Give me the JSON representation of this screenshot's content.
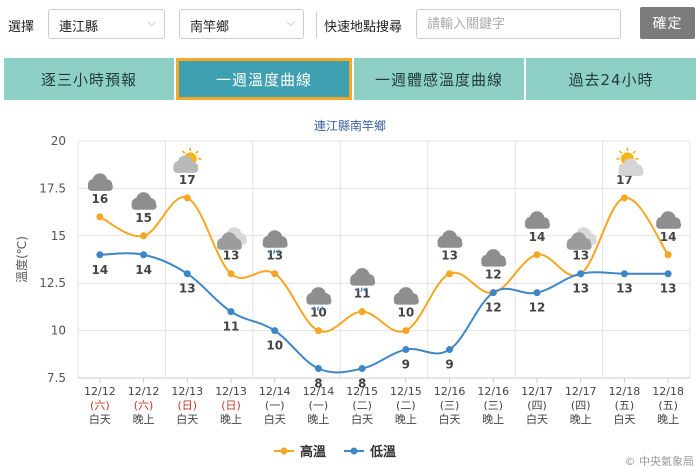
{
  "search": {
    "select_label": "選擇",
    "county": "連江縣",
    "town": "南竿鄉",
    "quick_label": "快速地點搜尋",
    "placeholder": "請輸入關鍵字",
    "confirm_label": "確定"
  },
  "tabs": [
    {
      "label": "逐三小時預報",
      "active": false
    },
    {
      "label": "一週溫度曲線",
      "active": true
    },
    {
      "label": "一週體感溫度曲線",
      "active": false
    },
    {
      "label": "過去24小時",
      "active": false
    }
  ],
  "credit": "© 中央氣象局",
  "colors": {
    "high": "#f5a623",
    "low": "#3f86c6",
    "weekend": "#c0392b"
  },
  "chart_data": {
    "type": "line",
    "title": "連江縣南竿鄉",
    "ylabel": "溫度(℃)",
    "ylim": [
      7.5,
      20
    ],
    "yticks": [
      "20",
      "17.5",
      "15",
      "12.5",
      "10",
      "7.5"
    ],
    "grid": true,
    "legend": "bottom-center",
    "categories": [
      {
        "date": "12/12",
        "dow": "(六)",
        "period": "白天",
        "weekend": true,
        "icon": "cloudy-icon"
      },
      {
        "date": "12/12",
        "dow": "(六)",
        "period": "晚上",
        "weekend": true,
        "icon": "cloudy-icon"
      },
      {
        "date": "12/13",
        "dow": "(日)",
        "period": "白天",
        "weekend": true,
        "icon": "partly-sunny-icon"
      },
      {
        "date": "12/13",
        "dow": "(日)",
        "period": "晚上",
        "weekend": true,
        "icon": "partly-cloudy-night-icon"
      },
      {
        "date": "12/14",
        "dow": "(一)",
        "period": "白天",
        "weekend": false,
        "icon": "cloudy-rain-icon"
      },
      {
        "date": "12/14",
        "dow": "(一)",
        "period": "晚上",
        "weekend": false,
        "icon": "cloudy-rain-icon"
      },
      {
        "date": "12/15",
        "dow": "(二)",
        "period": "白天",
        "weekend": false,
        "icon": "cloudy-rain-icon"
      },
      {
        "date": "12/15",
        "dow": "(二)",
        "period": "晚上",
        "weekend": false,
        "icon": "cloudy-icon"
      },
      {
        "date": "12/16",
        "dow": "(三)",
        "period": "白天",
        "weekend": false,
        "icon": "cloudy-icon"
      },
      {
        "date": "12/16",
        "dow": "(三)",
        "period": "晚上",
        "weekend": false,
        "icon": "cloudy-icon"
      },
      {
        "date": "12/17",
        "dow": "(四)",
        "period": "白天",
        "weekend": false,
        "icon": "cloudy-icon"
      },
      {
        "date": "12/17",
        "dow": "(四)",
        "period": "晚上",
        "weekend": false,
        "icon": "partly-cloudy-night-icon"
      },
      {
        "date": "12/18",
        "dow": "(五)",
        "period": "白天",
        "weekend": false,
        "icon": "sunny-cloud-icon"
      },
      {
        "date": "12/18",
        "dow": "(五)",
        "period": "晚上",
        "weekend": false,
        "icon": "cloudy-icon"
      }
    ],
    "series": [
      {
        "name": "高溫",
        "values": [
          16,
          15,
          17,
          13,
          13,
          10,
          11,
          10,
          13,
          12,
          14,
          13,
          17,
          14
        ]
      },
      {
        "name": "低溫",
        "values": [
          14,
          14,
          13,
          11,
          10,
          8,
          8,
          9,
          9,
          12,
          12,
          13,
          13,
          13
        ]
      }
    ]
  }
}
